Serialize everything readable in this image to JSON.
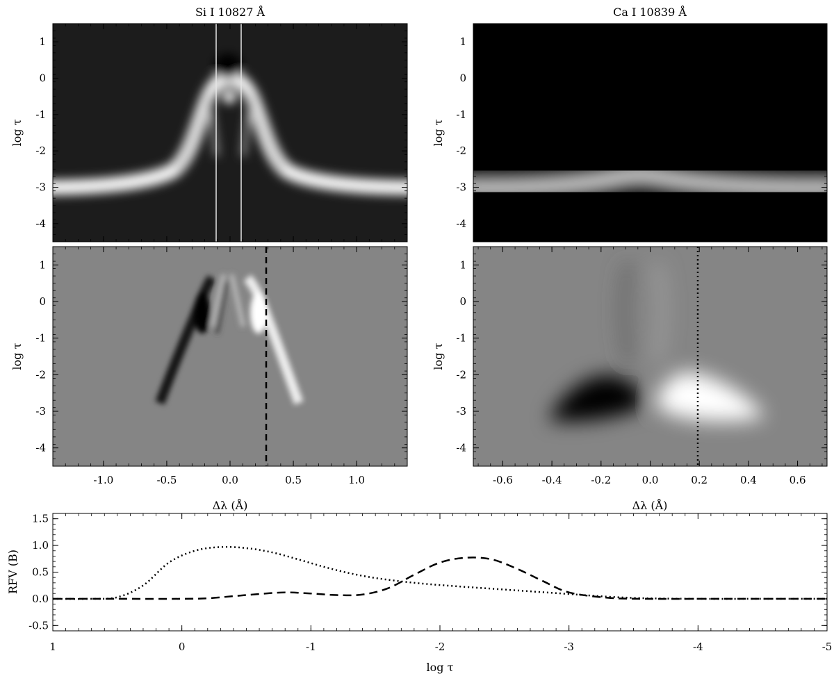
{
  "chart_data": [
    {
      "type": "heatmap",
      "title": "Si I 10827 Å",
      "ylabel": "log τ",
      "xlim": [
        -1.4,
        1.4
      ],
      "ylim": [
        1.5,
        -4.5
      ],
      "yticks": [
        "-4",
        "-3",
        "-2",
        "-1",
        "0",
        "1"
      ],
      "colormap": "grayscale",
      "vertical_lines": [
        -0.1,
        0.1
      ],
      "vertical_line_color": "#e6e6e6"
    },
    {
      "type": "heatmap",
      "title": "Ca I 10839 Å",
      "ylabel": "log τ",
      "xlim": [
        -0.72,
        0.72
      ],
      "ylim": [
        1.5,
        -4.5
      ],
      "yticks": [
        "-4",
        "-3",
        "-2",
        "-1",
        "0",
        "1"
      ],
      "colormap": "grayscale"
    },
    {
      "type": "heatmap",
      "xlabel": "Δλ (Å)",
      "ylabel": "log τ",
      "xlim": [
        -1.4,
        1.4
      ],
      "ylim": [
        1.5,
        -4.5
      ],
      "xticks": [
        "-1.0",
        "-0.5",
        "0.0",
        "0.5",
        "1.0"
      ],
      "yticks": [
        "-4",
        "-3",
        "-2",
        "-1",
        "0",
        "1"
      ],
      "colormap": "grayscale",
      "vertical_line": 0.3,
      "vertical_line_style": "dashed"
    },
    {
      "type": "heatmap",
      "xlabel": "Δλ (Å)",
      "ylabel": "log τ",
      "xlim": [
        -0.72,
        0.72
      ],
      "ylim": [
        1.5,
        -4.5
      ],
      "xticks": [
        "-0.6",
        "-0.4",
        "-0.2",
        "0.0",
        "0.2",
        "0.4",
        "0.6"
      ],
      "yticks": [
        "-4",
        "-3",
        "-2",
        "-1",
        "0",
        "1"
      ],
      "colormap": "grayscale",
      "vertical_line": 0.2,
      "vertical_line_style": "dotted"
    },
    {
      "type": "line",
      "xlabel": "log τ",
      "ylabel": "RFV (B)",
      "xlim": [
        1,
        -5
      ],
      "ylim": [
        -0.6,
        1.6
      ],
      "xticks": [
        "1",
        "0",
        "-1",
        "-2",
        "-3",
        "-4",
        "-5"
      ],
      "yticks": [
        "-0.5",
        "0.0",
        "0.5",
        "1.0",
        "1.5"
      ],
      "series": [
        {
          "style": "dashed",
          "x": [
            1.0,
            0.5,
            0.0,
            -0.2,
            -0.4,
            -0.6,
            -0.8,
            -1.0,
            -1.2,
            -1.4,
            -1.6,
            -1.8,
            -2.0,
            -2.2,
            -2.4,
            -2.6,
            -2.8,
            -3.0,
            -3.3,
            -3.6,
            -4.0,
            -4.5,
            -5.0
          ],
          "y": [
            0.0,
            0.0,
            0.0,
            0.01,
            0.05,
            0.09,
            0.12,
            0.1,
            0.07,
            0.08,
            0.2,
            0.45,
            0.68,
            0.77,
            0.74,
            0.56,
            0.33,
            0.12,
            0.02,
            0.0,
            0.0,
            0.0,
            0.0
          ]
        },
        {
          "style": "dotted",
          "x": [
            1.0,
            0.7,
            0.5,
            0.3,
            0.1,
            -0.1,
            -0.3,
            -0.5,
            -0.7,
            -0.9,
            -1.1,
            -1.3,
            -1.5,
            -1.8,
            -2.1,
            -2.4,
            -2.7,
            -3.0,
            -3.3,
            -3.6,
            -4.0,
            -4.5,
            -5.0
          ],
          "y": [
            0.0,
            0.0,
            0.03,
            0.25,
            0.68,
            0.9,
            0.97,
            0.95,
            0.87,
            0.74,
            0.6,
            0.48,
            0.39,
            0.3,
            0.24,
            0.19,
            0.14,
            0.09,
            0.04,
            0.01,
            0.0,
            0.0,
            0.0
          ]
        }
      ]
    }
  ]
}
